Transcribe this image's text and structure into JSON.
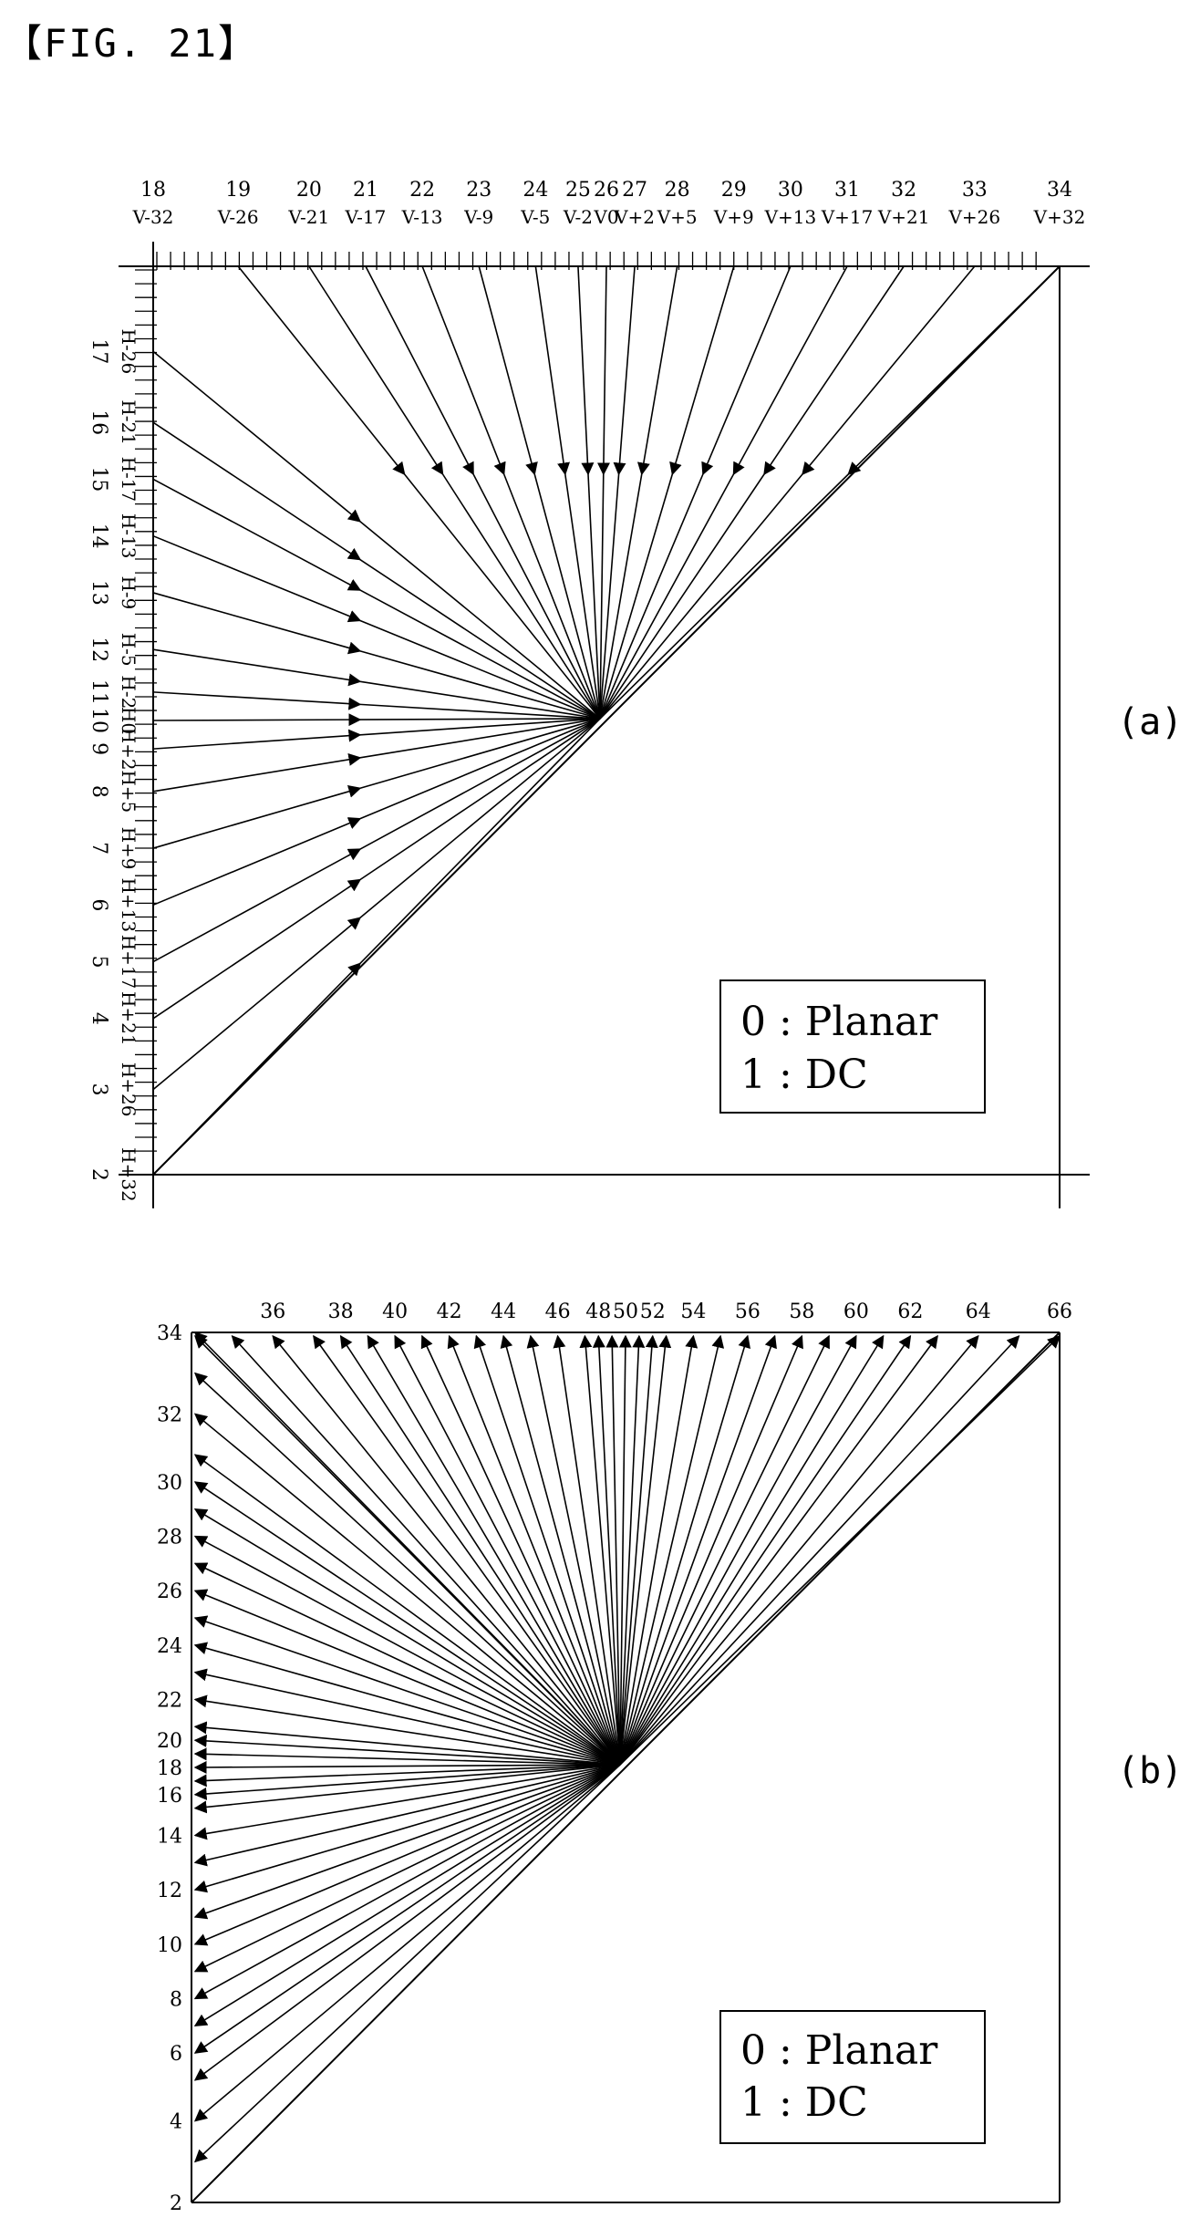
{
  "figure": {
    "title": "【FIG. 21】"
  },
  "panel_a": {
    "label": "(a)",
    "top_numbers": [
      "18",
      "19",
      "20",
      "21",
      "22",
      "23",
      "24",
      "25",
      "26",
      "27",
      "28",
      "29",
      "30",
      "31",
      "32",
      "33",
      "34"
    ],
    "top_names": [
      "V-32",
      "V-26",
      "V-21",
      "V-17",
      "V-13",
      "V-9",
      "V-5",
      "V-2",
      "V0",
      "V+2",
      "V+5",
      "V+9",
      "V+13",
      "V+17",
      "V+21",
      "V+26",
      "V+32"
    ],
    "left_numbers": [
      "17",
      "16",
      "15",
      "14",
      "13",
      "12",
      "11",
      "10",
      "9",
      "8",
      "7",
      "6",
      "5",
      "4",
      "3",
      "2"
    ],
    "left_names": [
      "H-26",
      "H-21",
      "H-17",
      "H-13",
      "H-9",
      "H-5",
      "H-2",
      "H0",
      "H+2",
      "H+5",
      "H+9",
      "H+13",
      "H+17",
      "H+21",
      "H+26",
      "H+32"
    ],
    "legend": {
      "line1": "0 : Planar",
      "line2": "1 : DC"
    }
  },
  "panel_b": {
    "label": "(b)",
    "top_numbers": [
      "36",
      "38",
      "40",
      "42",
      "44",
      "46",
      "48",
      "50",
      "52",
      "54",
      "56",
      "58",
      "60",
      "62",
      "64",
      "66"
    ],
    "left_numbers": [
      "34",
      "32",
      "30",
      "28",
      "26",
      "24",
      "22",
      "20",
      "18",
      "16",
      "14",
      "12",
      "10",
      "8",
      "6",
      "4",
      "2"
    ],
    "legend": {
      "line1": "0 : Planar",
      "line2": "1 : DC"
    }
  }
}
